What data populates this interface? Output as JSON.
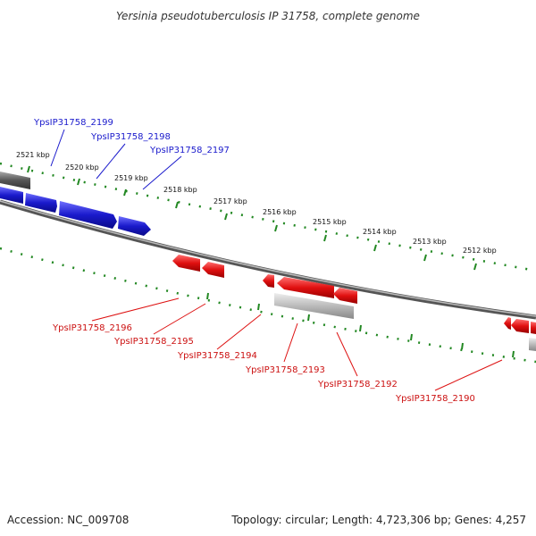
{
  "title": "Yersinia pseudotuberculosis IP 31758, complete genome",
  "footer": {
    "accession": "Accession: NC_009708",
    "summary": "Topology: circular; Length: 4,723,306 bp; Genes: 4,257"
  },
  "scale_labels": [
    "2521 kbp",
    "2520 kbp",
    "2519 kbp",
    "2518 kbp",
    "2517 kbp",
    "2516 kbp",
    "2515 kbp",
    "2514 kbp",
    "2513 kbp",
    "2512 kbp"
  ],
  "genes_forward": [
    "YpsIP31758_2199",
    "YpsIP31758_2198",
    "YpsIP31758_2197"
  ],
  "genes_reverse": [
    "YpsIP31758_2196",
    "YpsIP31758_2195",
    "YpsIP31758_2194",
    "YpsIP31758_2193",
    "YpsIP31758_2192",
    "YpsIP31758_2190"
  ],
  "colors": {
    "forward_gene": "#1a1acc",
    "reverse_gene": "#dd1111",
    "backbone": "#777777",
    "tick": "#228822",
    "grey_feature": "#aaaaaa"
  }
}
